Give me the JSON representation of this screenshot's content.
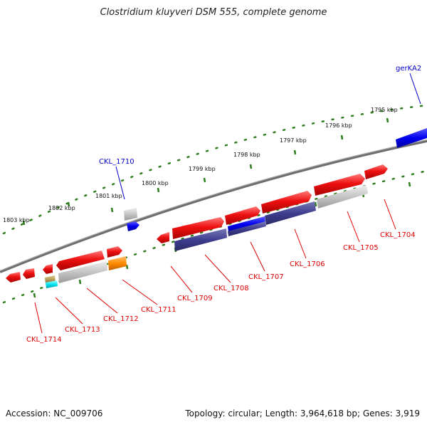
{
  "title": "Clostridium kluyveri DSM 555, complete genome",
  "footer": {
    "accession": "Accession: NC_009706",
    "topology": "Topology: circular; Length: 3,964,618 bp; Genes: 3,919"
  },
  "colors": {
    "backbone": "#7a7a7a",
    "tick": "#2f7d1e",
    "forward_gene": "#ee1111",
    "reverse_gene": "#ee1111",
    "feature_dark_blue": "#3d3d8f",
    "feature_blue": "#0000ee",
    "feature_grey": "#c0c0c0",
    "feature_orange": "#ff8c00",
    "feature_cyan": "#00e5ee",
    "feature_olive": "#b49a5a",
    "label_red": "#dd0000",
    "label_blue": "#0000cc"
  },
  "scale_labels": [
    "1803 kbp",
    "1802 kbp",
    "1801 kbp",
    "1800 kbp",
    "1799 kbp",
    "1798 kbp",
    "1797 kbp",
    "1796 kbp",
    "1795 kbp"
  ],
  "genes_top": [
    {
      "label": "CKL_1710",
      "color": "label_blue"
    },
    {
      "label": "gerKA2",
      "color": "label_blue"
    }
  ],
  "genes_bottom": [
    {
      "label": "CKL_1714"
    },
    {
      "label": "CKL_1713"
    },
    {
      "label": "CKL_1712"
    },
    {
      "label": "CKL_1711"
    },
    {
      "label": "CKL_1709"
    },
    {
      "label": "CKL_1708"
    },
    {
      "label": "CKL_1707"
    },
    {
      "label": "CKL_1706"
    },
    {
      "label": "CKL_1705"
    },
    {
      "label": "CKL_1704"
    }
  ]
}
